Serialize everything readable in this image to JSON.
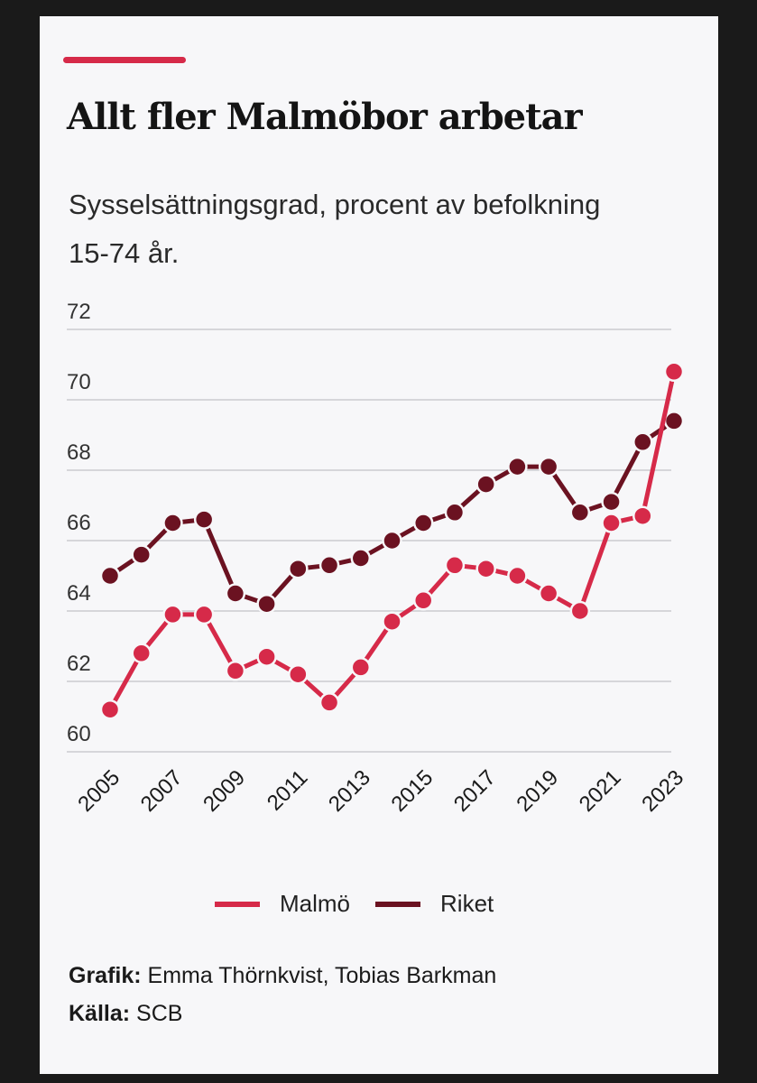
{
  "chart_data": {
    "type": "line",
    "title": "Allt fler Malmöbor arbetar",
    "subtitle": "Sysselsättningsgrad, procent av befolkning 15-74 år.",
    "x": [
      2005,
      2006,
      2007,
      2008,
      2009,
      2010,
      2011,
      2012,
      2013,
      2014,
      2015,
      2016,
      2017,
      2018,
      2019,
      2020,
      2021,
      2022,
      2023
    ],
    "x_tick_labels": [
      "2005",
      "2007",
      "2009",
      "2011",
      "2013",
      "2015",
      "2017",
      "2019",
      "2021",
      "2023"
    ],
    "ylim": [
      60,
      72
    ],
    "y_ticks": [
      "60",
      "62",
      "64",
      "66",
      "68",
      "70",
      "72"
    ],
    "grid": true,
    "legend_position": "bottom",
    "series": [
      {
        "name": "Malmö",
        "color": "#d62a49",
        "values": [
          61.2,
          62.8,
          63.9,
          63.9,
          62.3,
          62.7,
          62.2,
          61.4,
          62.4,
          63.7,
          64.3,
          65.3,
          65.2,
          65.0,
          64.5,
          64.0,
          66.5,
          66.7,
          70.8
        ]
      },
      {
        "name": "Riket",
        "color": "#6b1221",
        "values": [
          65.0,
          65.6,
          66.5,
          66.6,
          64.5,
          64.2,
          65.2,
          65.3,
          65.5,
          66.0,
          66.5,
          66.8,
          67.6,
          68.1,
          68.1,
          66.8,
          67.1,
          68.8,
          69.4
        ]
      }
    ]
  },
  "legend": {
    "malmo_label": "Malmö",
    "riket_label": "Riket"
  },
  "credits": {
    "grafik_label": "Grafik:",
    "grafik_value": "Emma Thörnkvist, Tobias Barkman",
    "kalla_label": "Källa:",
    "kalla_value": "SCB"
  }
}
